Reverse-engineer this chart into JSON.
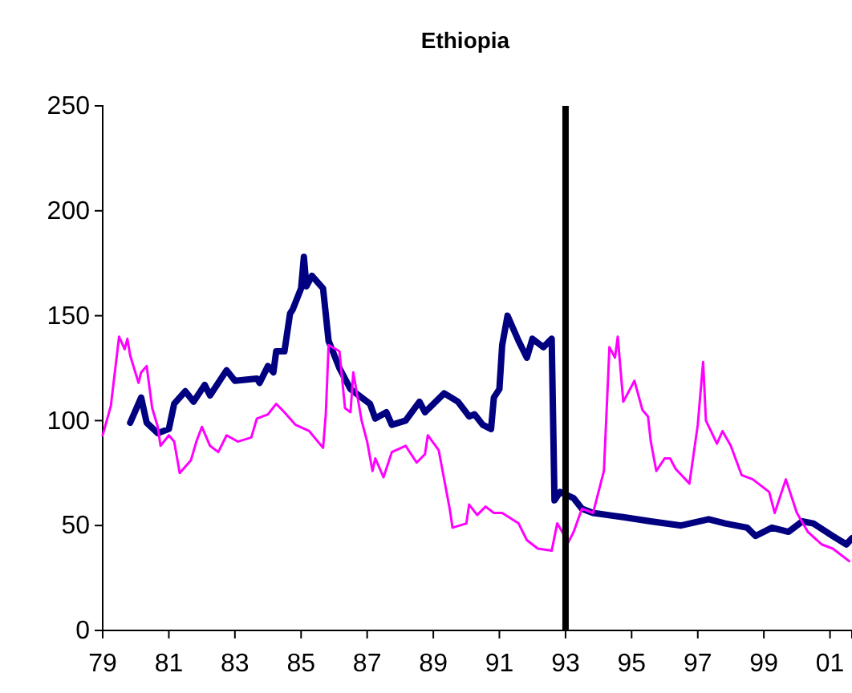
{
  "chart_data": {
    "type": "line",
    "title": "Ethiopia",
    "xlim": [
      "1979",
      "2001-09"
    ],
    "xticks": [
      {
        "value": "1979",
        "label": "79"
      },
      {
        "value": "1981",
        "label": "81"
      },
      {
        "value": "1983",
        "label": "83"
      },
      {
        "value": "1985",
        "label": "85"
      },
      {
        "value": "1987",
        "label": "87"
      },
      {
        "value": "1989",
        "label": "89"
      },
      {
        "value": "1991",
        "label": "91"
      },
      {
        "value": "1993",
        "label": "93"
      },
      {
        "value": "1995",
        "label": "95"
      },
      {
        "value": "1997",
        "label": "97"
      },
      {
        "value": "1999",
        "label": "99"
      },
      {
        "value": "2001",
        "label": "01"
      }
    ],
    "ylim": [
      0,
      250
    ],
    "yticks": [
      0,
      50,
      100,
      150,
      200,
      250
    ],
    "line_style": "solid",
    "ref_lines": [
      {
        "axis": "x",
        "value": "1993",
        "color": "#000000"
      }
    ],
    "series": [
      {
        "color": "#000080",
        "x": [
          "1979-11",
          "1980-03",
          "1980-05",
          "1980-09",
          "1981-01",
          "1981-03",
          "1981-07",
          "1981-10",
          "1982-02",
          "1982-04",
          "1982-10",
          "1983-01",
          "1983-09",
          "1983-10",
          "1984-01",
          "1984-03",
          "1984-04",
          "1984-07",
          "1984-09",
          "1984-10",
          "1985-01",
          "1985-02",
          "1985-03",
          "1985-05",
          "1985-09",
          "1985-11",
          "1986-03",
          "1986-07",
          "1986-10",
          "1987-02",
          "1987-04",
          "1987-08",
          "1987-10",
          "1988-03",
          "1988-08",
          "1988-10",
          "1989-05",
          "1989-10",
          "1990-02",
          "1990-04",
          "1990-07",
          "1990-10",
          "1990-11",
          "1991-01",
          "1991-02",
          "1991-04",
          "1991-08",
          "1991-11",
          "1992-01",
          "1992-05",
          "1992-08",
          "1992-09",
          "1992-11",
          "1993-04",
          "1993-07",
          "1993-11",
          "1994-10",
          "1995-08",
          "1996-07",
          "1997-05",
          "1997-11",
          "1998-07",
          "1998-10",
          "1999-04",
          "1999-10",
          "2000-03",
          "2000-07",
          "2001-02",
          "2001-07",
          "2001-09"
        ],
        "values": [
          99,
          111,
          99,
          94,
          96,
          108,
          114,
          109,
          117,
          112,
          124,
          119,
          120,
          118,
          126,
          123,
          133,
          133,
          151,
          153,
          163,
          178,
          164,
          169,
          163,
          138,
          125,
          115,
          112,
          108,
          101,
          104,
          98,
          100,
          109,
          104,
          113,
          109,
          102,
          103,
          98,
          96,
          111,
          115,
          136,
          150,
          138,
          130,
          139,
          135,
          139,
          62,
          66,
          63,
          58,
          56,
          54,
          52,
          50,
          53,
          51,
          49,
          45,
          49,
          47,
          52,
          51,
          45,
          41,
          44
        ]
      },
      {
        "color": "#ff00ff",
        "x": [
          "1979-01",
          "1979-04",
          "1979-07",
          "1979-09",
          "1979-10",
          "1979-11",
          "1980-02",
          "1980-03",
          "1980-05",
          "1980-07",
          "1980-09",
          "1980-10",
          "1981-01",
          "1981-03",
          "1981-05",
          "1981-09",
          "1981-11",
          "1982-01",
          "1982-04",
          "1982-07",
          "1982-10",
          "1983-02",
          "1983-07",
          "1983-09",
          "1984-01",
          "1984-04",
          "1984-07",
          "1984-11",
          "1985-04",
          "1985-09",
          "1985-10",
          "1985-11",
          "1986-03",
          "1986-05",
          "1986-07",
          "1986-08",
          "1986-11",
          "1987-01",
          "1987-03",
          "1987-04",
          "1987-07",
          "1987-10",
          "1988-03",
          "1988-07",
          "1988-10",
          "1988-11",
          "1989-03",
          "1989-07",
          "1989-08",
          "1990-01",
          "1990-02",
          "1990-05",
          "1990-08",
          "1990-11",
          "1991-02",
          "1991-08",
          "1991-11",
          "1992-03",
          "1992-08",
          "1992-10",
          "1993-02",
          "1993-04",
          "1993-07",
          "1993-11",
          "1994-03",
          "1994-05",
          "1994-07",
          "1994-08",
          "1994-10",
          "1995-02",
          "1995-05",
          "1995-07",
          "1995-08",
          "1995-10",
          "1996-01",
          "1996-03",
          "1996-05",
          "1996-10",
          "1997-01",
          "1997-03",
          "1997-04",
          "1997-08",
          "1997-10",
          "1998-01",
          "1998-05",
          "1998-09",
          "1999-03",
          "1999-05",
          "1999-09",
          "2000-01",
          "2000-05",
          "2000-10",
          "2001-02",
          "2001-08"
        ],
        "values": [
          93,
          107,
          140,
          134,
          139,
          131,
          118,
          123,
          126,
          106,
          97,
          88,
          93,
          90,
          75,
          81,
          90,
          97,
          88,
          85,
          93,
          90,
          92,
          101,
          103,
          108,
          104,
          98,
          95,
          87,
          103,
          136,
          133,
          106,
          104,
          123,
          100,
          90,
          76,
          82,
          73,
          85,
          88,
          80,
          84,
          93,
          86,
          58,
          49,
          51,
          60,
          55,
          59,
          56,
          56,
          51,
          43,
          39,
          38,
          51,
          42,
          47,
          58,
          56,
          76,
          135,
          130,
          140,
          109,
          119,
          105,
          102,
          90,
          76,
          82,
          82,
          77,
          70,
          98,
          128,
          100,
          89,
          95,
          88,
          74,
          72,
          66,
          56,
          72,
          56,
          47,
          41,
          39,
          33
        ]
      }
    ]
  }
}
